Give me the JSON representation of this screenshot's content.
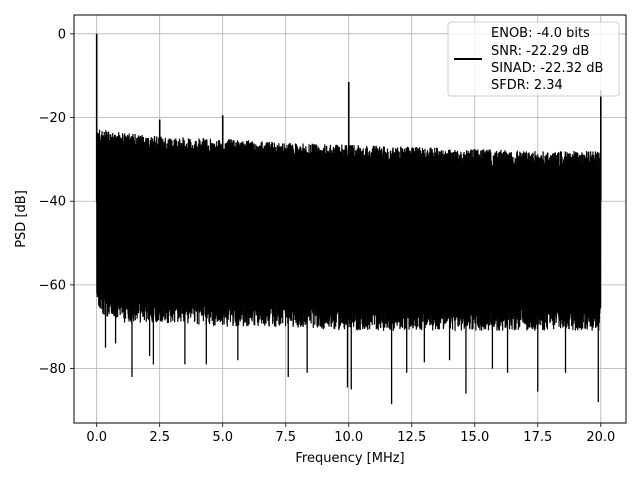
{
  "chart_data": {
    "type": "line",
    "xlabel": "Frequency [MHz]",
    "ylabel": "PSD [dB]",
    "xlim": [
      -0.9,
      21.0
    ],
    "ylim": [
      -93.0,
      4.5
    ],
    "xticks": [
      0.0,
      2.5,
      5.0,
      7.5,
      10.0,
      12.5,
      15.0,
      17.5,
      20.0
    ],
    "xtick_labels": [
      "0.0",
      "2.5",
      "5.0",
      "7.5",
      "10.0",
      "12.5",
      "15.0",
      "17.5",
      "20.0"
    ],
    "yticks": [
      0,
      -20,
      -40,
      -60,
      -80
    ],
    "ytick_labels": [
      "0",
      "−20",
      "−40",
      "−60",
      "−80"
    ],
    "grid": true,
    "legend_placement": "top-right",
    "legend_lines": [
      "ENOB: -4.0 bits",
      "SNR: -22.29 dB",
      "SINAD: -22.32 dB",
      "SFDR: 2.34"
    ],
    "line_color": "#000000",
    "series": [
      {
        "noise_floor": {
          "x": [
            0.0,
            0.3,
            1.0,
            2.5,
            5.0,
            7.5,
            10.0,
            12.5,
            15.0,
            17.5,
            20.0
          ],
          "upper": [
            -22.5,
            -23.0,
            -23.5,
            -24.5,
            -25.0,
            -26.0,
            -26.5,
            -27.0,
            -27.5,
            -28.0,
            -28.0
          ],
          "lower": [
            -65.0,
            -68.0,
            -69.0,
            -69.0,
            -70.0,
            -70.0,
            -71.0,
            -71.0,
            -71.0,
            -71.0,
            -71.0
          ]
        },
        "spurs": [
          {
            "x": 0.0,
            "y": 0.0
          },
          {
            "x": 2.5,
            "y": -20.5
          },
          {
            "x": 5.0,
            "y": -19.5
          },
          {
            "x": 10.0,
            "y": -11.5
          },
          {
            "x": 20.0,
            "y": -13.5
          }
        ],
        "dips": [
          {
            "x": 0.35,
            "y": -75.0
          },
          {
            "x": 0.75,
            "y": -74.0
          },
          {
            "x": 1.4,
            "y": -82.0
          },
          {
            "x": 2.1,
            "y": -77.0
          },
          {
            "x": 2.25,
            "y": -79.0
          },
          {
            "x": 3.5,
            "y": -79.0
          },
          {
            "x": 4.35,
            "y": -79.0
          },
          {
            "x": 5.6,
            "y": -78.0
          },
          {
            "x": 7.6,
            "y": -82.0
          },
          {
            "x": 8.35,
            "y": -81.0
          },
          {
            "x": 9.95,
            "y": -84.5
          },
          {
            "x": 10.1,
            "y": -85.0
          },
          {
            "x": 11.7,
            "y": -88.5
          },
          {
            "x": 12.3,
            "y": -81.0
          },
          {
            "x": 13.0,
            "y": -78.5
          },
          {
            "x": 14.0,
            "y": -78.0
          },
          {
            "x": 14.65,
            "y": -86.0
          },
          {
            "x": 15.7,
            "y": -80.0
          },
          {
            "x": 16.3,
            "y": -81.0
          },
          {
            "x": 17.5,
            "y": -85.5
          },
          {
            "x": 18.6,
            "y": -81.0
          },
          {
            "x": 19.9,
            "y": -88.0
          }
        ]
      }
    ]
  }
}
